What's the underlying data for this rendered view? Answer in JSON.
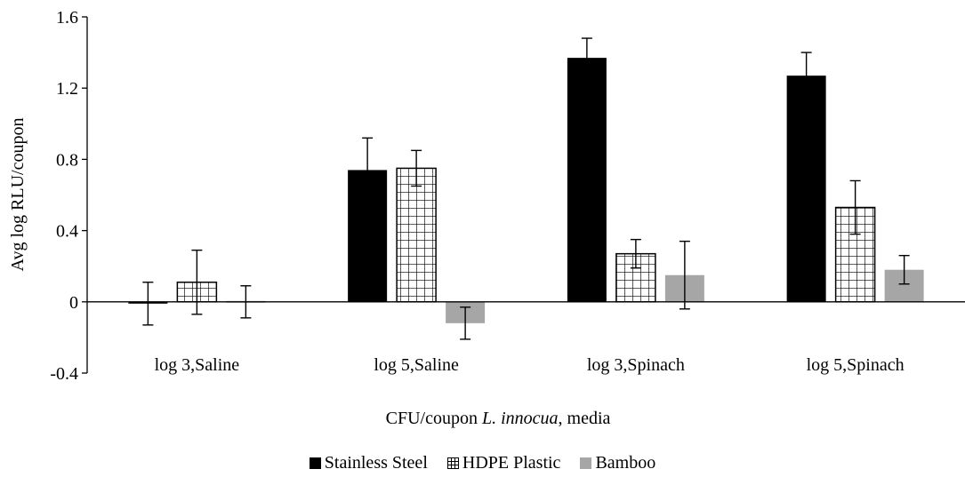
{
  "chart_data": {
    "type": "bar",
    "ylabel": "Avg log RLU/coupon",
    "xlabel_prefix": "CFU/coupon ",
    "xlabel_italic": "L. innocua",
    "xlabel_suffix": ", media",
    "ylim": [
      -0.4,
      1.6
    ],
    "yticks": [
      -0.4,
      0,
      0.4,
      0.8,
      1.2,
      1.6
    ],
    "ytick_labels": [
      "-0.4",
      "0",
      "0.4",
      "0.8",
      "1.2",
      "1.6"
    ],
    "categories": [
      "log 3,Saline",
      "log 5,Saline",
      "log 3,Spinach",
      "log 5,Spinach"
    ],
    "series": [
      {
        "name": "Stainless Steel",
        "pattern": "solid",
        "color": "#000000",
        "values": [
          -0.01,
          0.74,
          1.37,
          1.27
        ],
        "errors": [
          0.12,
          0.18,
          0.11,
          0.13
        ]
      },
      {
        "name": "HDPE Plastic",
        "pattern": "grid",
        "color": "#000000",
        "values": [
          0.11,
          0.75,
          0.27,
          0.53
        ],
        "errors": [
          0.18,
          0.1,
          0.08,
          0.15
        ]
      },
      {
        "name": "Bamboo",
        "pattern": "solid",
        "color": "#a6a6a6",
        "values": [
          0.0,
          -0.12,
          0.15,
          0.18
        ],
        "errors": [
          0.09,
          0.09,
          0.19,
          0.08
        ]
      }
    ],
    "legend_position": "bottom",
    "grid": false
  }
}
